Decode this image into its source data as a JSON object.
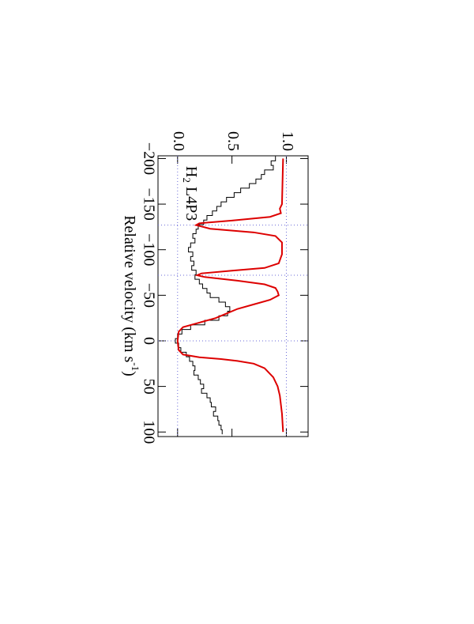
{
  "chart_data": {
    "type": "line",
    "label": [
      "H",
      "2",
      "L4P3"
    ],
    "xlabel": [
      "Relative velocity (km s",
      "-1",
      ")"
    ],
    "xlim": [
      -203,
      105
    ],
    "ylim": [
      -0.18,
      1.2
    ],
    "xticks": [
      {
        "value": -200,
        "label": "−200"
      },
      {
        "value": -150,
        "label": "−150"
      },
      {
        "value": -100,
        "label": "−100"
      },
      {
        "value": -50,
        "label": "−50"
      },
      0,
      50,
      100
    ],
    "yticks": [
      {
        "value": 0,
        "label": "0.0"
      },
      0.5,
      {
        "value": 1,
        "label": "1.0"
      }
    ],
    "hlines": [
      0,
      1
    ],
    "vlines": [
      -127,
      -72,
      0
    ],
    "series": [
      {
        "style": "steps",
        "color": "#000000",
        "x": [
          -200,
          -195,
          -190,
          -185,
          -180,
          -175,
          -170,
          -165,
          -160,
          -155,
          -150,
          -145,
          -140,
          -135,
          -130,
          -125,
          -120,
          -115,
          -110,
          -105,
          -100,
          -95,
          -90,
          -85,
          -80,
          -75,
          -70,
          -65,
          -60,
          -55,
          -50,
          -45,
          -40,
          -35,
          -30,
          -25,
          -20,
          -15,
          -10,
          -5,
          0,
          5,
          10,
          15,
          20,
          25,
          30,
          35,
          40,
          45,
          50,
          55,
          60,
          65,
          70,
          75,
          80,
          85,
          90,
          95,
          100
        ],
        "values": [
          0.9,
          0.86,
          0.88,
          0.8,
          0.77,
          0.72,
          0.66,
          0.58,
          0.52,
          0.45,
          0.4,
          0.36,
          0.32,
          0.27,
          0.24,
          0.19,
          0.17,
          0.14,
          0.16,
          0.12,
          0.1,
          0.14,
          0.12,
          0.15,
          0.13,
          0.17,
          0.16,
          0.2,
          0.23,
          0.27,
          0.3,
          0.38,
          0.44,
          0.48,
          0.46,
          0.38,
          0.25,
          0.12,
          0.04,
          0.0,
          -0.02,
          0.01,
          0.03,
          0.08,
          0.11,
          0.14,
          0.16,
          0.15,
          0.19,
          0.21,
          0.24,
          0.22,
          0.27,
          0.3,
          0.31,
          0.35,
          0.33,
          0.37,
          0.38,
          0.4,
          0.41
        ]
      },
      {
        "style": "line",
        "color": "#dd0000",
        "x": [
          -200,
          -150,
          -145,
          -140,
          -136,
          -132,
          -129,
          -127,
          -123,
          -119,
          -115,
          -108,
          -95,
          -85,
          -80,
          -77,
          -74,
          -72,
          -70,
          -66,
          -62,
          -58,
          -54,
          -50,
          -45,
          -40,
          -35,
          -30,
          -25,
          -20,
          -15,
          -10,
          0,
          10,
          15,
          18,
          20,
          22,
          25,
          30,
          40,
          50,
          60,
          80,
          100
        ],
        "values": [
          0.97,
          0.96,
          0.94,
          0.95,
          0.85,
          0.5,
          0.2,
          0.17,
          0.3,
          0.7,
          0.9,
          0.96,
          0.96,
          0.93,
          0.8,
          0.5,
          0.22,
          0.18,
          0.25,
          0.55,
          0.8,
          0.9,
          0.92,
          0.93,
          0.85,
          0.7,
          0.55,
          0.45,
          0.35,
          0.2,
          0.05,
          0.01,
          0.0,
          0.01,
          0.05,
          0.2,
          0.4,
          0.55,
          0.7,
          0.8,
          0.88,
          0.92,
          0.94,
          0.96,
          0.97
        ]
      }
    ]
  }
}
